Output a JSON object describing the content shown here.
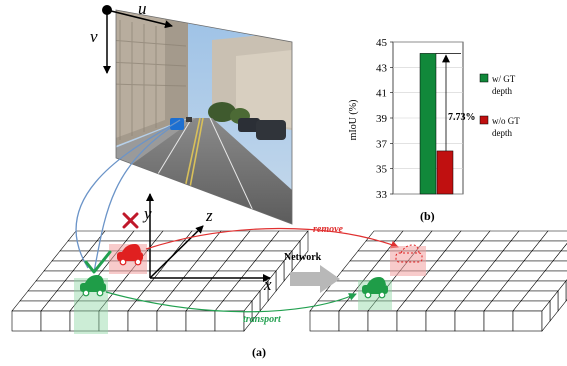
{
  "diagram": {
    "axes_image": {
      "u": "u",
      "v": "v"
    },
    "axes_world": {
      "x": "x",
      "y": "y",
      "z": "z"
    },
    "network_label": "Network",
    "remove_label": "remove",
    "transport_label": "transport",
    "caption_a": "(a)",
    "caption_b": "(b)",
    "colors": {
      "remove": "#e03030",
      "transport": "#22a050",
      "ray": "#6b94c8",
      "network_arrow": "#b8b8b8"
    }
  },
  "chart_data": {
    "type": "bar",
    "categories": [
      "w/ GT depth",
      "w/o GT depth"
    ],
    "values": [
      44.1,
      36.4
    ],
    "colors": [
      "#11883a",
      "#c01010"
    ],
    "ylabel": "mIoU (%)",
    "ylim": [
      33,
      45
    ],
    "yticks": [
      "33",
      "35",
      "37",
      "39",
      "41",
      "43",
      "45"
    ],
    "annotation": "7.73%",
    "legend": [
      {
        "line1": "w/ GT",
        "line2": "depth"
      },
      {
        "line1": "w/o GT",
        "line2": "depth"
      }
    ],
    "legend_position": "right",
    "grid": true
  }
}
